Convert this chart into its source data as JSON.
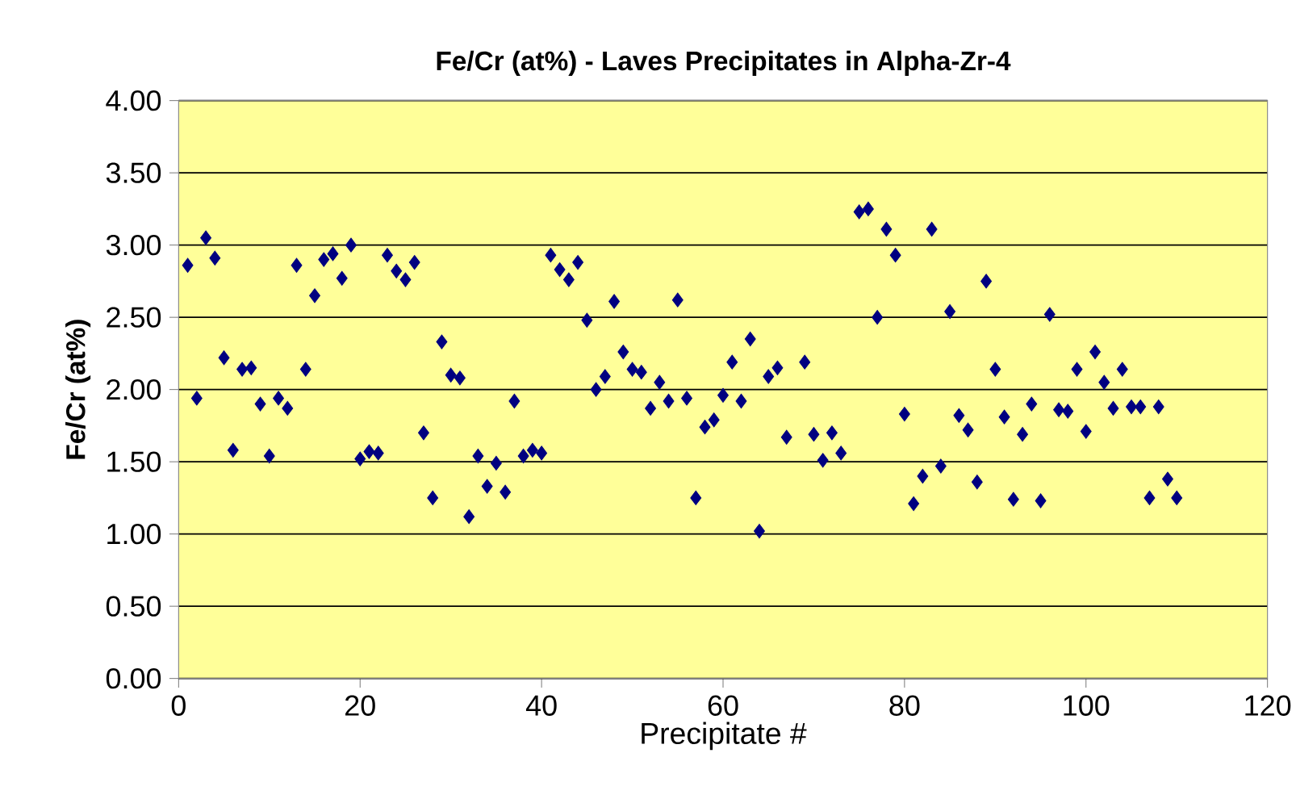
{
  "chart_data": {
    "type": "scatter",
    "title": "Fe/Cr (at%) - Laves Precipitates in Alpha-Zr-4",
    "xlabel": "Precipitate #",
    "ylabel": "Fe/Cr (at%)",
    "x": [
      1,
      2,
      3,
      4,
      5,
      6,
      7,
      8,
      9,
      10,
      11,
      12,
      13,
      14,
      15,
      16,
      17,
      18,
      19,
      20,
      21,
      22,
      23,
      24,
      25,
      26,
      27,
      28,
      29,
      30,
      31,
      32,
      33,
      34,
      35,
      36,
      37,
      38,
      39,
      40,
      41,
      42,
      43,
      44,
      45,
      46,
      47,
      48,
      49,
      50,
      51,
      52,
      53,
      54,
      55,
      56,
      57,
      58,
      59,
      60,
      61,
      62,
      63,
      64,
      65,
      66,
      67,
      69,
      70,
      71,
      72,
      73,
      75,
      76,
      77,
      78,
      79,
      80,
      81,
      82,
      83,
      84,
      85,
      86,
      87,
      88,
      89,
      90,
      91,
      92,
      93,
      94,
      95,
      96,
      97,
      98,
      99,
      100,
      101,
      102,
      103,
      104,
      105,
      106,
      107,
      108,
      109,
      110
    ],
    "series": [
      {
        "color": "#000080",
        "values": [
          2.86,
          1.94,
          3.05,
          2.91,
          2.22,
          1.58,
          2.14,
          2.15,
          1.9,
          1.54,
          1.94,
          1.87,
          2.86,
          2.14,
          2.65,
          2.9,
          2.94,
          2.77,
          3.0,
          1.52,
          1.57,
          1.56,
          2.93,
          2.82,
          2.76,
          2.88,
          1.7,
          1.25,
          2.33,
          2.1,
          2.08,
          1.12,
          1.54,
          1.33,
          1.49,
          1.29,
          1.92,
          1.54,
          1.58,
          1.56,
          2.93,
          2.83,
          2.76,
          2.88,
          2.48,
          2.0,
          2.09,
          2.61,
          2.26,
          2.14,
          2.12,
          1.87,
          2.05,
          1.92,
          2.62,
          1.94,
          1.25,
          1.74,
          1.79,
          1.96,
          2.19,
          1.92,
          2.35,
          1.02,
          2.09,
          2.15,
          1.67,
          2.19,
          1.69,
          1.51,
          1.7,
          1.56,
          3.23,
          3.25,
          2.5,
          3.11,
          2.93,
          1.83,
          1.21,
          1.4,
          3.11,
          1.47,
          2.54,
          1.82,
          1.72,
          1.36,
          2.75,
          2.14,
          1.81,
          1.24,
          1.69,
          1.9,
          1.23,
          2.52,
          1.86,
          1.85,
          2.14,
          1.71,
          2.26,
          2.05,
          1.87,
          2.14,
          1.88,
          1.88,
          1.25,
          1.88,
          1.38,
          1.25
        ]
      }
    ],
    "xlim": [
      0,
      120
    ],
    "xticks": [
      0,
      20,
      40,
      60,
      80,
      100,
      120
    ],
    "ylim": [
      0,
      4
    ],
    "yticks": [
      {
        "value": 0,
        "label": "0.00"
      },
      {
        "value": 0.5,
        "label": "0.50"
      },
      {
        "value": 1,
        "label": "1.00"
      },
      {
        "value": 1.5,
        "label": "1.50"
      },
      {
        "value": 2,
        "label": "2.00"
      },
      {
        "value": 2.5,
        "label": "2.50"
      },
      {
        "value": 3,
        "label": "3.00"
      },
      {
        "value": 3.5,
        "label": "3.50"
      },
      {
        "value": 4,
        "label": "4.00"
      }
    ],
    "grid": "y",
    "marker": "diamond"
  }
}
